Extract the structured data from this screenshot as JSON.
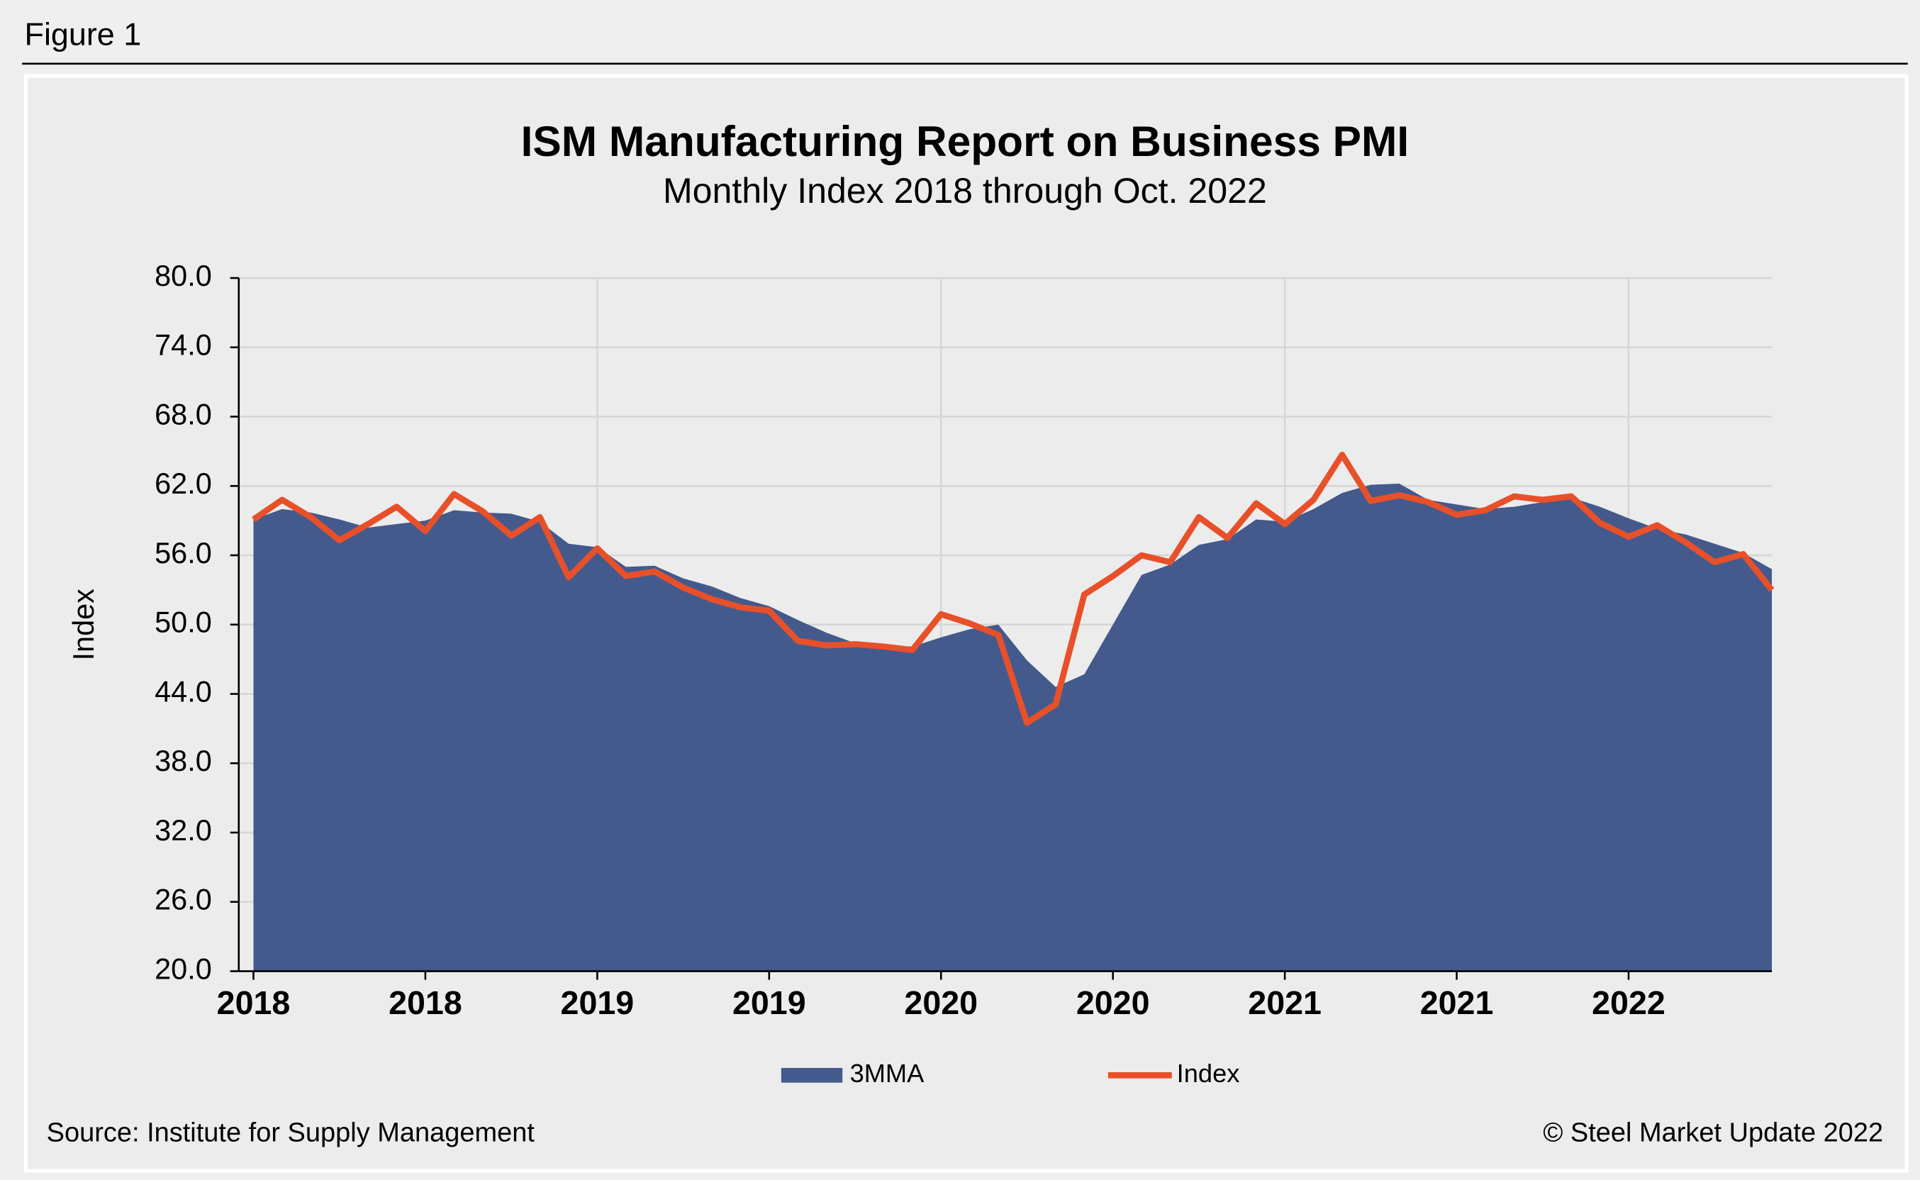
{
  "figure_label": "Figure 1",
  "source": "Source: Institute for Supply Management",
  "copyright": "© Steel Market Update 2022",
  "chart_data": {
    "type": "area",
    "title": "ISM Manufacturing Report on Business PMI",
    "subtitle": "Monthly Index 2018 through Oct. 2022",
    "y_label": "Index",
    "categories": [
      "2018",
      null,
      null,
      null,
      null,
      null,
      "2018",
      null,
      null,
      null,
      null,
      null,
      "2019",
      null,
      null,
      null,
      null,
      null,
      "2019",
      null,
      null,
      null,
      null,
      null,
      "2020",
      null,
      null,
      null,
      null,
      null,
      "2020",
      null,
      null,
      null,
      null,
      null,
      "2021",
      null,
      null,
      null,
      null,
      null,
      "2021",
      null,
      null,
      null,
      null,
      null,
      "2022",
      null,
      null,
      null,
      null,
      null
    ],
    "series": [
      {
        "name": "3MMA",
        "type": "area",
        "color": "#445a8c",
        "values": [
          59.1,
          60.0,
          59.7,
          59.1,
          58.4,
          58.7,
          59.0,
          59.9,
          59.7,
          59.6,
          58.9,
          57.0,
          56.7,
          55.0,
          55.1,
          54.0,
          53.3,
          52.3,
          51.6,
          50.4,
          49.3,
          48.4,
          48.2,
          48.1,
          48.9,
          49.6,
          50.0,
          46.9,
          44.6,
          45.7,
          50.0,
          54.3,
          55.2,
          56.9,
          57.4,
          59.1,
          58.9,
          60.0,
          61.4,
          62.1,
          62.2,
          60.8,
          60.4,
          60.0,
          60.2,
          60.6,
          61.0,
          60.2,
          59.2,
          58.3,
          57.8,
          57.0,
          56.2,
          54.8
        ]
      },
      {
        "name": "Index",
        "type": "line",
        "color": "#e8502a",
        "values": [
          59.1,
          60.8,
          59.3,
          57.3,
          58.7,
          60.2,
          58.1,
          61.3,
          59.8,
          57.7,
          59.3,
          54.1,
          56.6,
          54.2,
          54.6,
          53.2,
          52.2,
          51.5,
          51.2,
          48.6,
          48.2,
          48.3,
          48.1,
          47.8,
          50.9,
          50.1,
          49.1,
          41.5,
          43.1,
          52.6,
          54.2,
          56.0,
          55.4,
          59.3,
          57.5,
          60.5,
          58.7,
          60.8,
          64.7,
          60.7,
          61.2,
          60.6,
          59.5,
          59.9,
          61.1,
          60.8,
          61.1,
          58.8,
          57.6,
          58.6,
          57.1,
          55.4,
          56.1,
          53.0
        ]
      }
    ],
    "ylim": [
      20,
      80
    ],
    "yticks": [
      {
        "value": 20,
        "label": "20.0"
      },
      {
        "value": 26,
        "label": "26.0"
      },
      {
        "value": 32,
        "label": "32.0"
      },
      {
        "value": 38,
        "label": "38.0"
      },
      {
        "value": 44,
        "label": "44.0"
      },
      {
        "value": 50,
        "label": "50.0"
      },
      {
        "value": 56,
        "label": "56.0"
      },
      {
        "value": 62,
        "label": "62.0"
      },
      {
        "value": 68,
        "label": "68.0"
      },
      {
        "value": 74,
        "label": "74.0"
      },
      {
        "value": 80,
        "label": "80.0"
      }
    ],
    "grid": true,
    "legend": "bottom"
  }
}
